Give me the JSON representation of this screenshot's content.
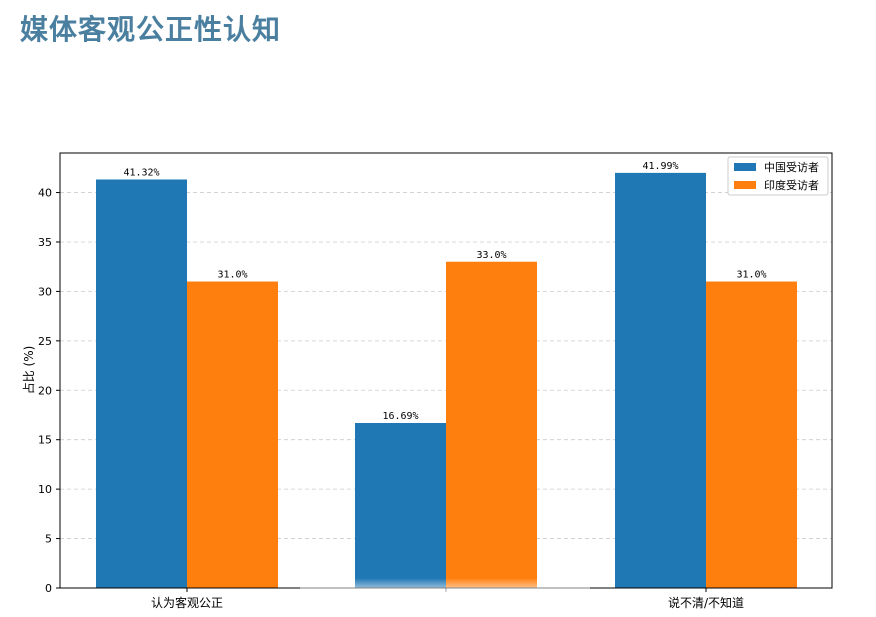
{
  "page": {
    "title": "媒体客观公正性认知"
  },
  "chart_data": {
    "type": "bar",
    "title": "",
    "xlabel": "",
    "ylabel": "占比 (%)",
    "categories": [
      "认为客观公正",
      "",
      "说不清/不知道"
    ],
    "series": [
      {
        "name": "中国受访者",
        "color": "#1f77b4",
        "values": [
          41.32,
          16.69,
          41.99
        ],
        "labels": [
          "41.32%",
          "16.69%",
          "41.99%"
        ]
      },
      {
        "name": "印度受访者",
        "color": "#ff7f0e",
        "values": [
          31.0,
          33.0,
          31.0
        ],
        "labels": [
          "31.0%",
          "33.0%",
          "31.0%"
        ]
      }
    ],
    "ylim": [
      0,
      44
    ],
    "yticks": [
      0,
      5,
      10,
      15,
      20,
      25,
      30,
      35,
      40
    ],
    "grid": "y-dashed",
    "legend_position": "top-right"
  }
}
